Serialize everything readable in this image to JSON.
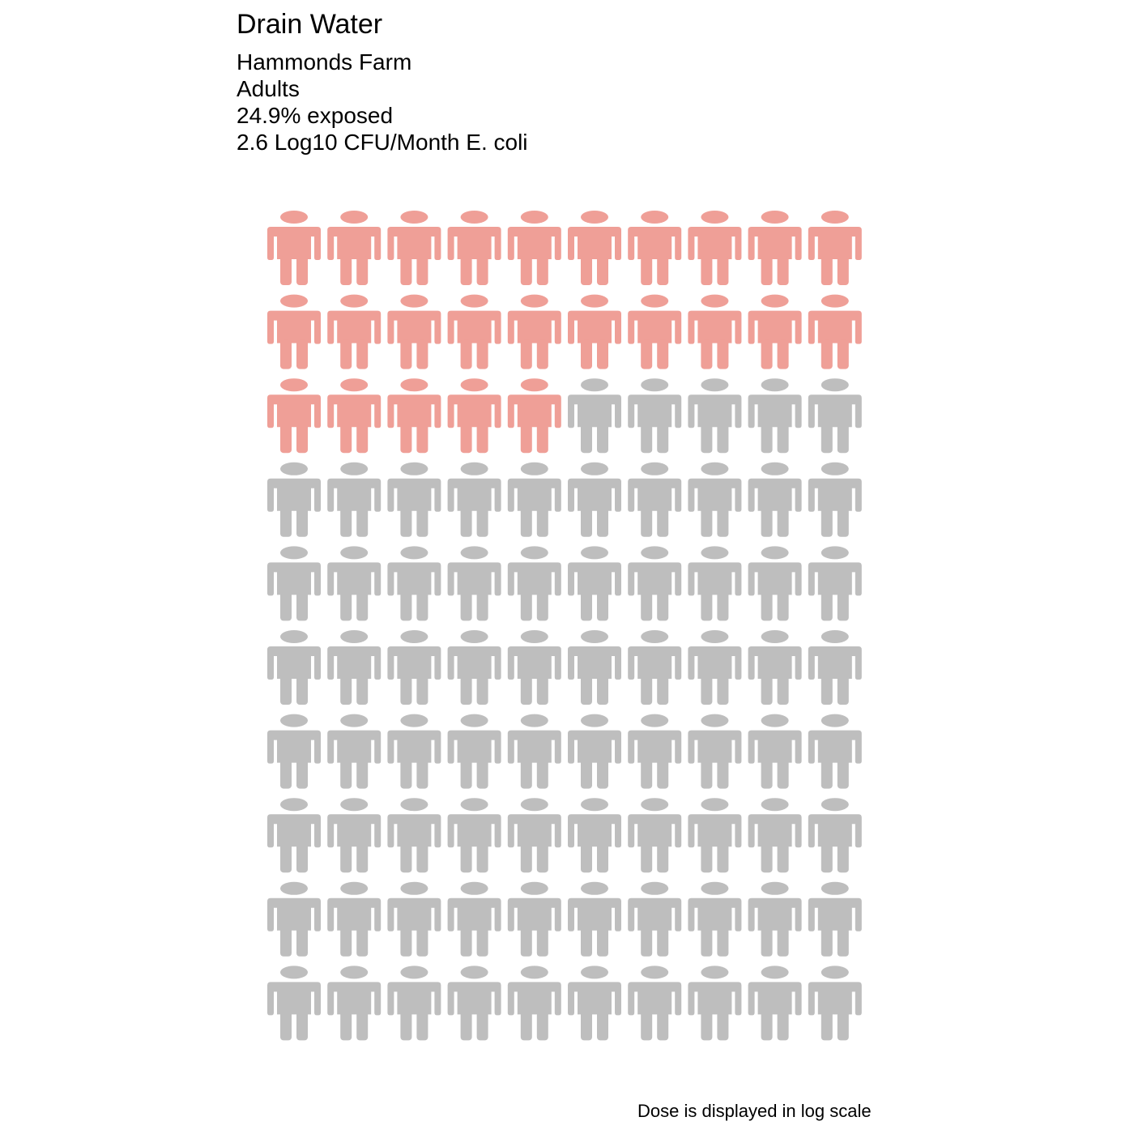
{
  "chart_data": {
    "type": "pictogram",
    "title": "Drain Water",
    "subtitle_lines": [
      "Hammonds Farm",
      "Adults",
      "24.9% exposed",
      "2.6 Log10 CFU/Month E. coli"
    ],
    "caption": "Dose is displayed in log scale",
    "total_icons": 100,
    "rows": 10,
    "columns": 10,
    "highlighted_icons": 25,
    "exposed_percent": 24.9,
    "dose_log10_cfu_per_month": 2.6,
    "icon": "person-icon",
    "colors": {
      "exposed": "#ef9f97",
      "unexposed": "#bebebe"
    }
  }
}
